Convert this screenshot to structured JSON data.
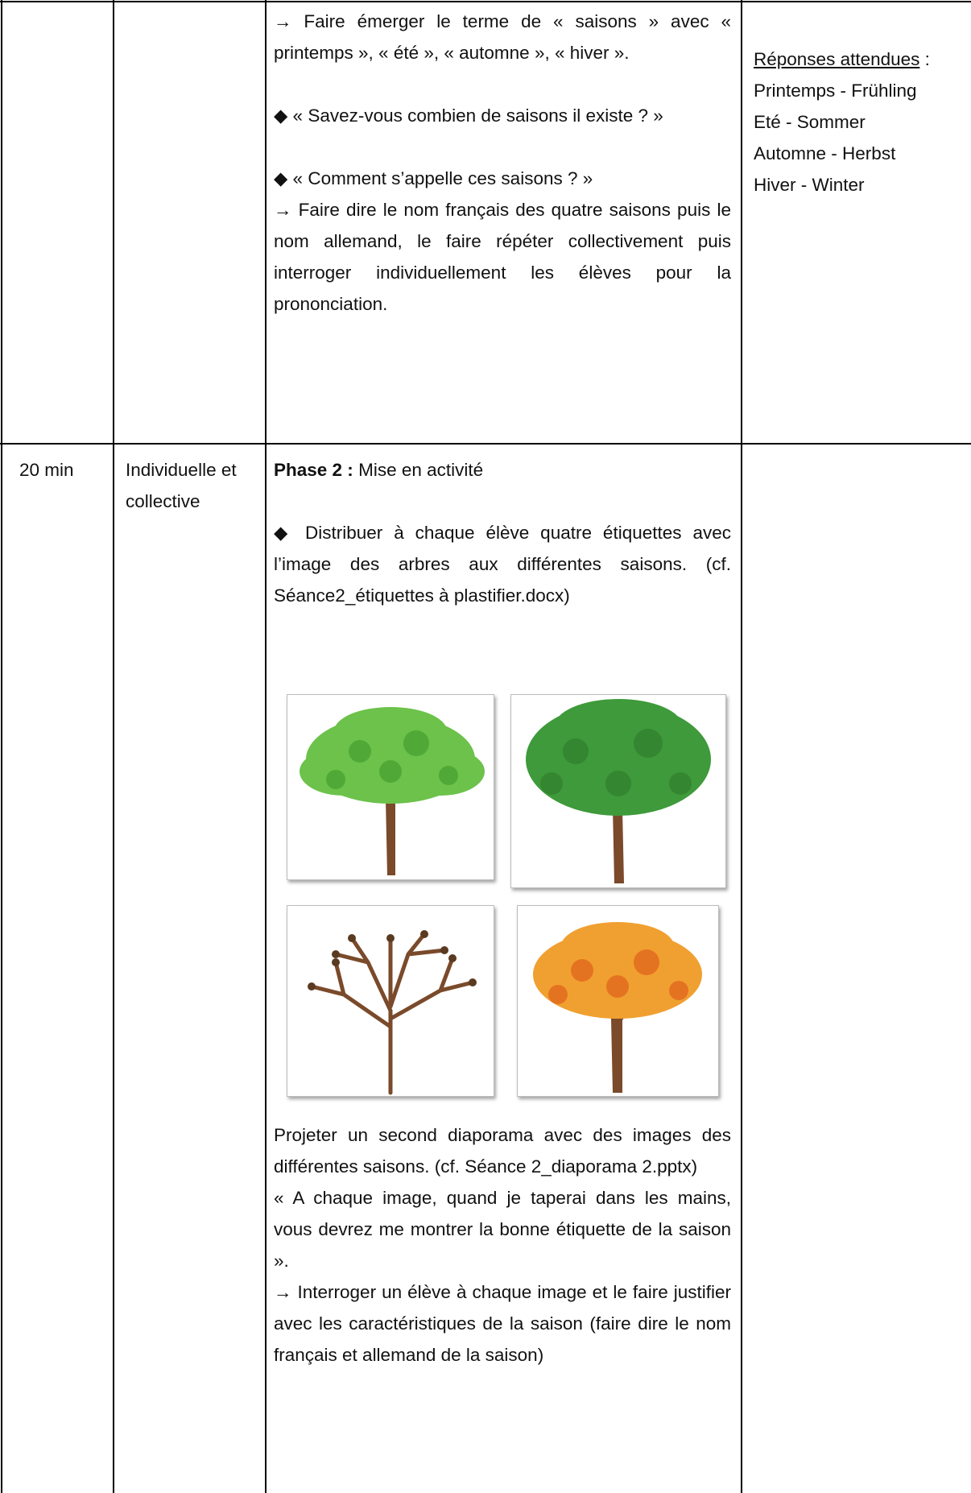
{
  "rows": [
    {
      "activity": [
        [
          "→ Faire émerger le terme de « saisons » avec « printemps », « été », « automne », « hiver »."
        ],
        [
          "◆ « Savez-vous combien de saisons il existe ? »"
        ],
        [
          "◆ « Comment s’appelle ces saisons ? »",
          "→ Faire dire le nom français des quatre saisons puis le nom allemand, le faire répéter collectivement puis interroger individuellement les élèves pour la prononciation."
        ]
      ],
      "answers": {
        "heading": "Réponses attendues",
        "colon": " :",
        "items": [
          "Printemps - Frühling",
          "Eté - Sommer",
          "Automne - Herbst",
          "Hiver - Winter"
        ]
      }
    },
    {
      "time": "20 min",
      "mode": "Individuelle et collective",
      "activity": {
        "phase_label": "Phase 2 :",
        "phase_title": "Mise en activité",
        "before_images": [
          "◆ Distribuer à chaque élève quatre étiquettes avec l’image des arbres aux différentes saisons. (cf. Séance2_étiquettes à plastifier.docx)"
        ],
        "after_images": [
          "Projeter un second diaporama avec des images des différentes saisons. (cf. Séance 2_diaporama 2.pptx)",
          "« A chaque image, quand je taperai dans les mains, vous devrez me montrer la bonne étiquette de la saison ».",
          "→ Interroger un élève à chaque image et le faire justifier avec les caractéristiques de la saison (faire dire le nom français et allemand de la saison)"
        ]
      }
    }
  ]
}
